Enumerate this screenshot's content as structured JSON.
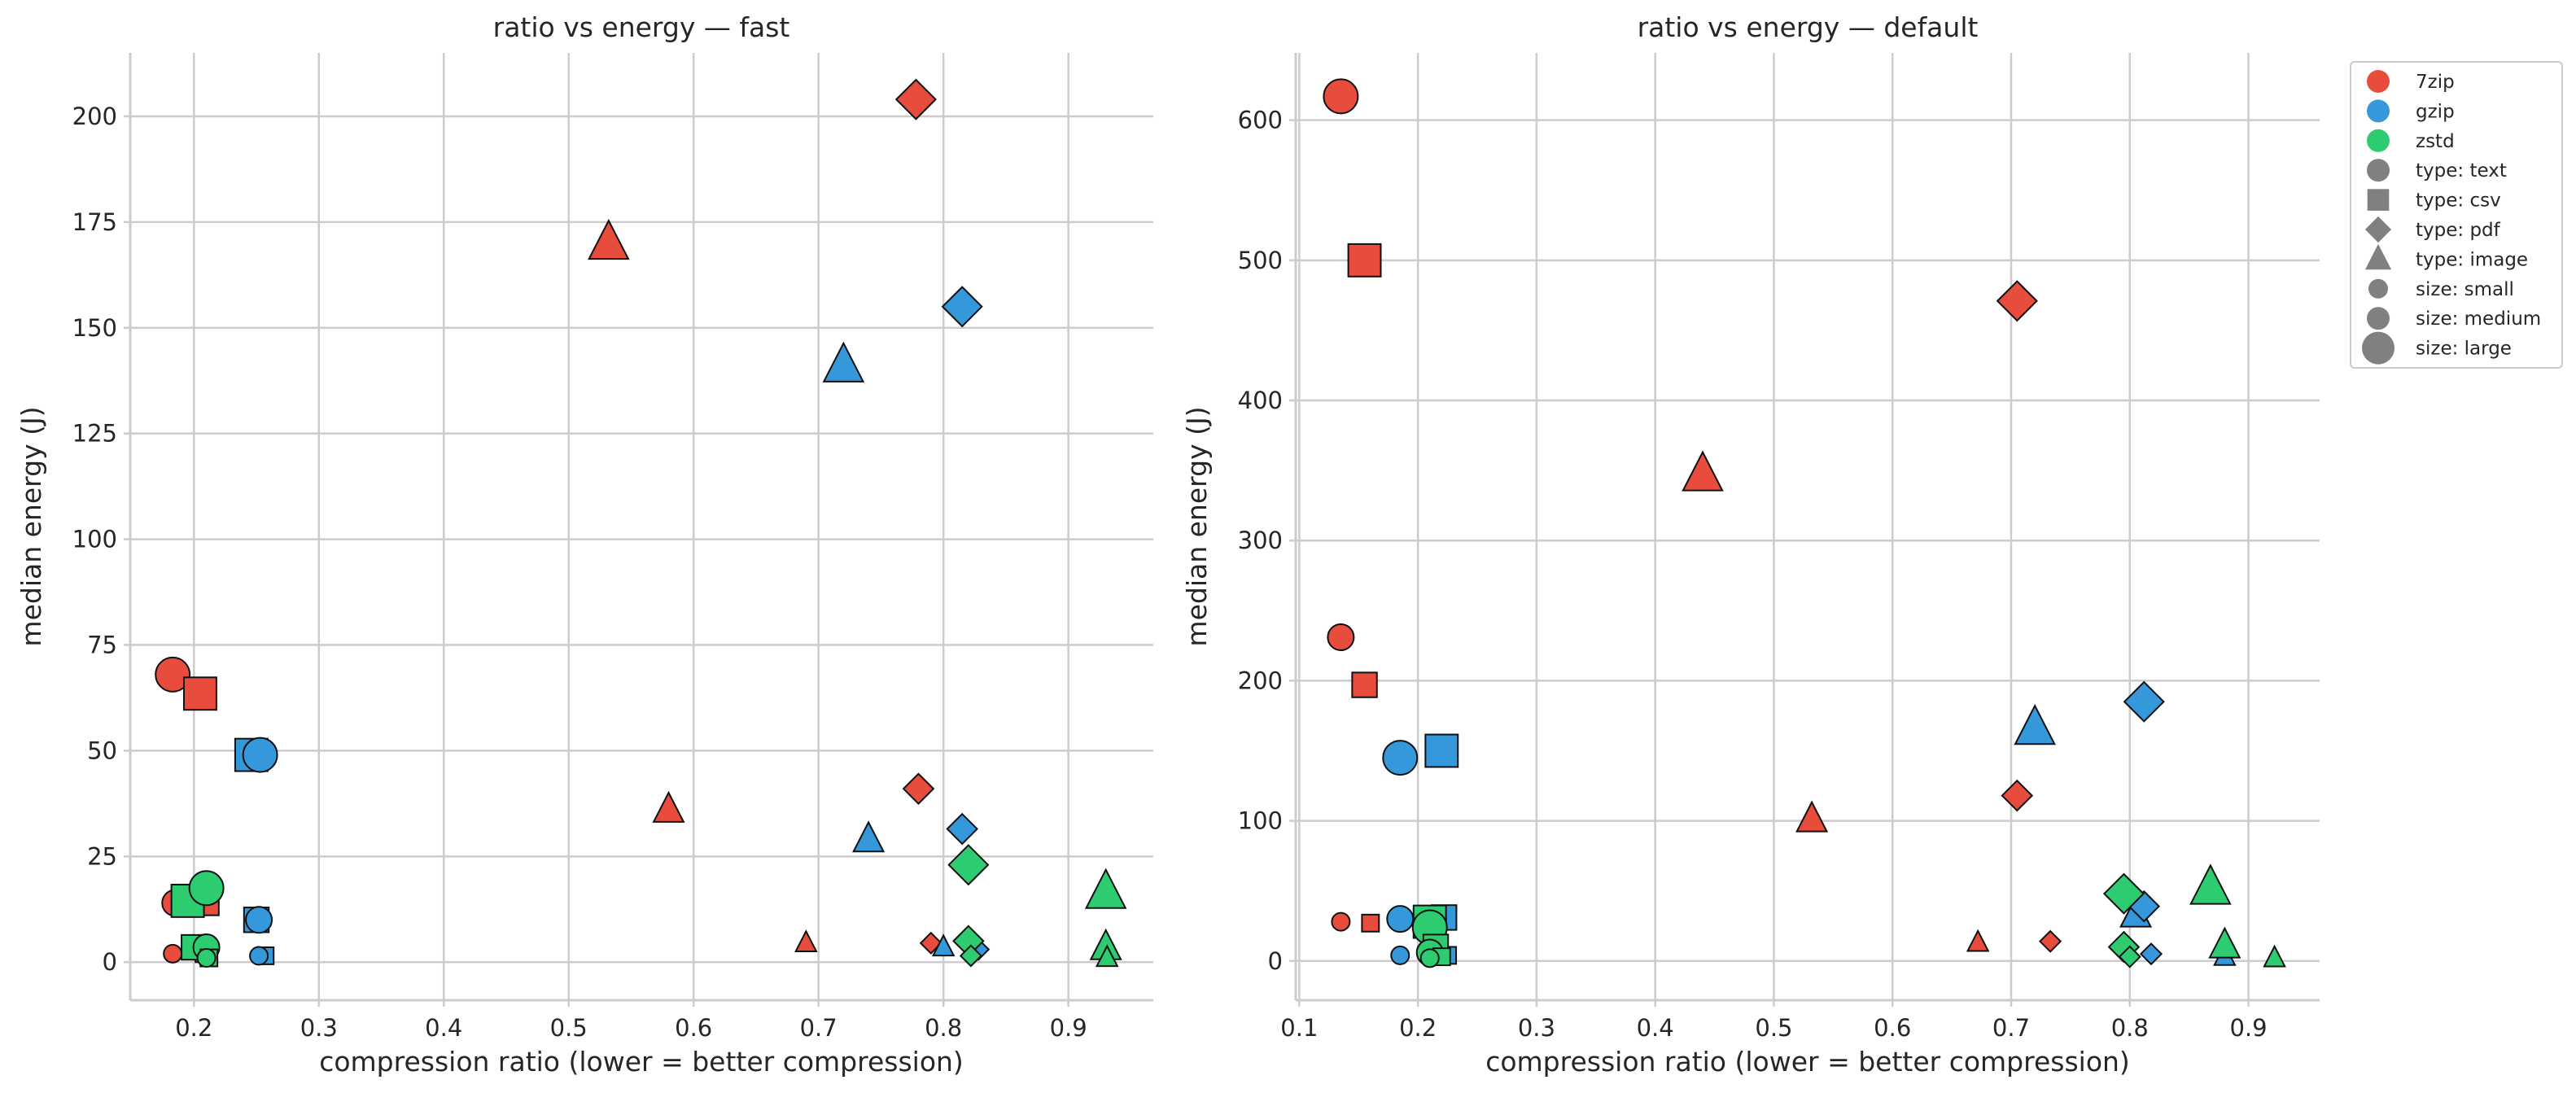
{
  "chart_data": [
    {
      "type": "scatter",
      "title": "ratio vs energy — fast",
      "xlabel": "compression ratio (lower = better compression)",
      "ylabel": "median energy (J)",
      "xlim": [
        0.149,
        0.968
      ],
      "ylim": [
        -9,
        215
      ],
      "xticks": [
        0.2,
        0.3,
        0.4,
        0.5,
        0.6,
        0.7,
        0.8,
        0.9
      ],
      "yticks": [
        0,
        25,
        50,
        75,
        100,
        125,
        150,
        175,
        200
      ],
      "grid": true,
      "series": [
        {
          "name": "7zip",
          "color": "#e74c3c",
          "points": [
            {
              "type": "text",
              "size": "large",
              "x": 0.183,
              "y": 68
            },
            {
              "type": "csv",
              "size": "large",
              "x": 0.205,
              "y": 63.5
            },
            {
              "type": "pdf",
              "size": "large",
              "x": 0.778,
              "y": 204
            },
            {
              "type": "image",
              "size": "large",
              "x": 0.532,
              "y": 170
            },
            {
              "type": "text",
              "size": "medium",
              "x": 0.185,
              "y": 14
            },
            {
              "type": "csv",
              "size": "medium",
              "x": 0.21,
              "y": 14
            },
            {
              "type": "pdf",
              "size": "medium",
              "x": 0.78,
              "y": 41
            },
            {
              "type": "image",
              "size": "medium",
              "x": 0.58,
              "y": 36
            },
            {
              "type": "text",
              "size": "small",
              "x": 0.183,
              "y": 2
            },
            {
              "type": "csv",
              "size": "small",
              "x": 0.208,
              "y": 2
            },
            {
              "type": "pdf",
              "size": "small",
              "x": 0.79,
              "y": 4.5
            },
            {
              "type": "image",
              "size": "small",
              "x": 0.69,
              "y": 4.5
            }
          ]
        },
        {
          "name": "gzip",
          "color": "#3498db",
          "points": [
            {
              "type": "csv",
              "size": "large",
              "x": 0.246,
              "y": 49
            },
            {
              "type": "text",
              "size": "large",
              "x": 0.253,
              "y": 49
            },
            {
              "type": "pdf",
              "size": "large",
              "x": 0.815,
              "y": 155
            },
            {
              "type": "image",
              "size": "large",
              "x": 0.72,
              "y": 141
            },
            {
              "type": "csv",
              "size": "medium",
              "x": 0.25,
              "y": 10
            },
            {
              "type": "text",
              "size": "medium",
              "x": 0.252,
              "y": 10
            },
            {
              "type": "pdf",
              "size": "medium",
              "x": 0.815,
              "y": 31.5
            },
            {
              "type": "image",
              "size": "medium",
              "x": 0.74,
              "y": 29
            },
            {
              "type": "csv",
              "size": "small",
              "x": 0.257,
              "y": 1.5
            },
            {
              "type": "text",
              "size": "small",
              "x": 0.252,
              "y": 1.5
            },
            {
              "type": "pdf",
              "size": "small",
              "x": 0.828,
              "y": 3
            },
            {
              "type": "image",
              "size": "small",
              "x": 0.8,
              "y": 3.5
            }
          ]
        },
        {
          "name": "zstd",
          "color": "#2ecc71",
          "points": [
            {
              "type": "csv",
              "size": "large",
              "x": 0.195,
              "y": 14.5
            },
            {
              "type": "text",
              "size": "large",
              "x": 0.21,
              "y": 17.5
            },
            {
              "type": "pdf",
              "size": "large",
              "x": 0.82,
              "y": 23
            },
            {
              "type": "image",
              "size": "large",
              "x": 0.93,
              "y": 16.5
            },
            {
              "type": "csv",
              "size": "medium",
              "x": 0.2,
              "y": 3.5
            },
            {
              "type": "text",
              "size": "medium",
              "x": 0.21,
              "y": 3.5
            },
            {
              "type": "pdf",
              "size": "medium",
              "x": 0.82,
              "y": 5
            },
            {
              "type": "image",
              "size": "medium",
              "x": 0.93,
              "y": 3.5
            },
            {
              "type": "csv",
              "size": "small",
              "x": 0.212,
              "y": 1
            },
            {
              "type": "text",
              "size": "small",
              "x": 0.21,
              "y": 1
            },
            {
              "type": "pdf",
              "size": "small",
              "x": 0.822,
              "y": 1.5
            },
            {
              "type": "image",
              "size": "small",
              "x": 0.931,
              "y": 1
            }
          ]
        }
      ]
    },
    {
      "type": "scatter",
      "title": "ratio vs energy — default",
      "xlabel": "compression ratio (lower = better compression)",
      "ylabel": "median energy (J)",
      "xlim": [
        0.097,
        0.96
      ],
      "ylim": [
        -28,
        648
      ],
      "xticks": [
        0.1,
        0.2,
        0.3,
        0.4,
        0.5,
        0.6,
        0.7,
        0.8,
        0.9
      ],
      "yticks": [
        0,
        100,
        200,
        300,
        400,
        500,
        600
      ],
      "grid": true,
      "series": [
        {
          "name": "7zip",
          "color": "#e74c3c",
          "points": [
            {
              "type": "text",
              "size": "large",
              "x": 0.135,
              "y": 617
            },
            {
              "type": "csv",
              "size": "large",
              "x": 0.155,
              "y": 500
            },
            {
              "type": "pdf",
              "size": "large",
              "x": 0.705,
              "y": 471
            },
            {
              "type": "image",
              "size": "large",
              "x": 0.44,
              "y": 347
            },
            {
              "type": "text",
              "size": "medium",
              "x": 0.135,
              "y": 231
            },
            {
              "type": "csv",
              "size": "medium",
              "x": 0.155,
              "y": 197
            },
            {
              "type": "pdf",
              "size": "medium",
              "x": 0.705,
              "y": 118
            },
            {
              "type": "image",
              "size": "medium",
              "x": 0.532,
              "y": 101
            },
            {
              "type": "text",
              "size": "small",
              "x": 0.135,
              "y": 28
            },
            {
              "type": "csv",
              "size": "small",
              "x": 0.16,
              "y": 27
            },
            {
              "type": "pdf",
              "size": "small",
              "x": 0.733,
              "y": 14
            },
            {
              "type": "image",
              "size": "small",
              "x": 0.672,
              "y": 13
            }
          ]
        },
        {
          "name": "gzip",
          "color": "#3498db",
          "points": [
            {
              "type": "text",
              "size": "large",
              "x": 0.185,
              "y": 145
            },
            {
              "type": "csv",
              "size": "large",
              "x": 0.22,
              "y": 150
            },
            {
              "type": "pdf",
              "size": "large",
              "x": 0.812,
              "y": 185
            },
            {
              "type": "image",
              "size": "large",
              "x": 0.72,
              "y": 166
            },
            {
              "type": "image",
              "size": "medium",
              "x": 0.805,
              "y": 33
            },
            {
              "type": "text",
              "size": "medium",
              "x": 0.185,
              "y": 30
            },
            {
              "type": "csv",
              "size": "medium",
              "x": 0.222,
              "y": 31
            },
            {
              "type": "pdf",
              "size": "medium",
              "x": 0.812,
              "y": 39
            },
            {
              "type": "text",
              "size": "small",
              "x": 0.185,
              "y": 4
            },
            {
              "type": "csv",
              "size": "small",
              "x": 0.225,
              "y": 4
            },
            {
              "type": "pdf",
              "size": "small",
              "x": 0.818,
              "y": 5
            },
            {
              "type": "image",
              "size": "small",
              "x": 0.88,
              "y": 3
            }
          ]
        },
        {
          "name": "zstd",
          "color": "#2ecc71",
          "points": [
            {
              "type": "csv",
              "size": "large",
              "x": 0.21,
              "y": 28
            },
            {
              "type": "text",
              "size": "large",
              "x": 0.21,
              "y": 24
            },
            {
              "type": "pdf",
              "size": "large",
              "x": 0.795,
              "y": 48
            },
            {
              "type": "image",
              "size": "large",
              "x": 0.868,
              "y": 52
            },
            {
              "type": "csv",
              "size": "medium",
              "x": 0.215,
              "y": 10
            },
            {
              "type": "text",
              "size": "medium",
              "x": 0.21,
              "y": 6
            },
            {
              "type": "pdf",
              "size": "medium",
              "x": 0.795,
              "y": 10
            },
            {
              "type": "image",
              "size": "medium",
              "x": 0.88,
              "y": 11
            },
            {
              "type": "csv",
              "size": "small",
              "x": 0.22,
              "y": 3
            },
            {
              "type": "text",
              "size": "small",
              "x": 0.21,
              "y": 2
            },
            {
              "type": "pdf",
              "size": "small",
              "x": 0.8,
              "y": 3
            },
            {
              "type": "image",
              "size": "small",
              "x": 0.922,
              "y": 2
            }
          ]
        }
      ]
    }
  ],
  "legend": {
    "placement": "outside-top-right",
    "marker_color": "#808080",
    "entries": [
      {
        "label": "7zip",
        "marker": "circle",
        "color": "#e74c3c",
        "size": "medium"
      },
      {
        "label": "gzip",
        "marker": "circle",
        "color": "#3498db",
        "size": "medium"
      },
      {
        "label": "zstd",
        "marker": "circle",
        "color": "#2ecc71",
        "size": "medium"
      },
      {
        "label": "type: text",
        "marker": "circle",
        "color": "#808080",
        "size": "medium"
      },
      {
        "label": "type: csv",
        "marker": "square",
        "color": "#808080",
        "size": "medium"
      },
      {
        "label": "type: pdf",
        "marker": "diamond",
        "color": "#808080",
        "size": "medium"
      },
      {
        "label": "type: image",
        "marker": "triangle",
        "color": "#808080",
        "size": "medium"
      },
      {
        "label": "size: small",
        "marker": "circle",
        "color": "#808080",
        "size": "small"
      },
      {
        "label": "size: medium",
        "marker": "circle",
        "color": "#808080",
        "size": "medium"
      },
      {
        "label": "size: large",
        "marker": "circle",
        "color": "#808080",
        "size": "large"
      }
    ]
  }
}
